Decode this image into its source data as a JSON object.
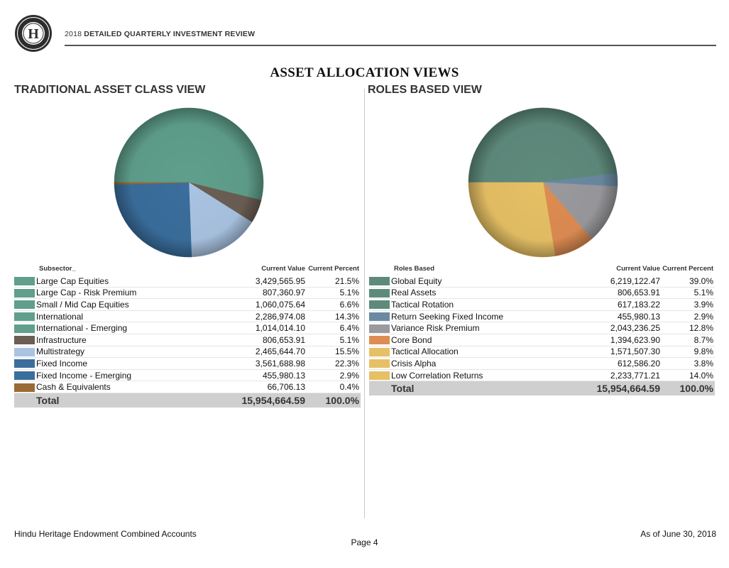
{
  "header": {
    "logo_letter": "H",
    "report_year": "2018",
    "report_name": "DETAILED QUARTERLY INVESTMENT REVIEW"
  },
  "page_title": "ASSET ALLOCATION VIEWS",
  "footer": {
    "account": "Hindu Heritage Endowment Combined Accounts",
    "page": "Page 4",
    "as_of": "As of June 30, 2018"
  },
  "chart_data": [
    {
      "type": "pie",
      "title": "TRADITIONAL ASSET CLASS VIEW",
      "label_header": "Subsector_",
      "value_header": "Current Value",
      "percent_header": "Current Percent",
      "rows": [
        {
          "label": "Large Cap Equities",
          "value": "3,429,565.95",
          "percent": "21.5%",
          "pct": 21.5,
          "color": "#5f9f8b"
        },
        {
          "label": "Large Cap - Risk Premium",
          "value": "807,360.97",
          "percent": "5.1%",
          "pct": 5.1,
          "color": "#5f9f8b"
        },
        {
          "label": "Small / Mid Cap Equities",
          "value": "1,060,075.64",
          "percent": "6.6%",
          "pct": 6.6,
          "color": "#5f9f8b"
        },
        {
          "label": "International",
          "value": "2,286,974.08",
          "percent": "14.3%",
          "pct": 14.3,
          "color": "#5f9f8b"
        },
        {
          "label": "International - Emerging",
          "value": "1,014,014.10",
          "percent": "6.4%",
          "pct": 6.4,
          "color": "#5f9f8b"
        },
        {
          "label": "Infrastructure",
          "value": "806,653.91",
          "percent": "5.1%",
          "pct": 5.1,
          "color": "#6b5e54"
        },
        {
          "label": "Multistrategy",
          "value": "2,465,644.70",
          "percent": "15.5%",
          "pct": 15.5,
          "color": "#a9c3e2"
        },
        {
          "label": "Fixed Income",
          "value": "3,561,688.98",
          "percent": "22.3%",
          "pct": 22.3,
          "color": "#3a6e9c"
        },
        {
          "label": "Fixed Income - Emerging",
          "value": "455,980.13",
          "percent": "2.9%",
          "pct": 2.9,
          "color": "#3a6e9c"
        },
        {
          "label": "Cash & Equivalents",
          "value": "66,706.13",
          "percent": "0.4%",
          "pct": 0.4,
          "color": "#9a6a34"
        }
      ],
      "total": {
        "label": "Total",
        "value": "15,954,664.59",
        "percent": "100.0%"
      }
    },
    {
      "type": "pie",
      "title": "ROLES BASED VIEW",
      "label_header": "Roles Based",
      "value_header": "Current Value",
      "percent_header": "Current Percent",
      "rows": [
        {
          "label": "Global Equity",
          "value": "6,219,122.47",
          "percent": "39.0%",
          "pct": 39.0,
          "color": "#5e8a7c"
        },
        {
          "label": "Real Assets",
          "value": "806,653.91",
          "percent": "5.1%",
          "pct": 5.1,
          "color": "#5e8a7c"
        },
        {
          "label": "Tactical Rotation",
          "value": "617,183.22",
          "percent": "3.9%",
          "pct": 3.9,
          "color": "#5e8a7c"
        },
        {
          "label": "Return Seeking Fixed Income",
          "value": "455,980.13",
          "percent": "2.9%",
          "pct": 2.9,
          "color": "#6a8aa2"
        },
        {
          "label": "Variance Risk Premium",
          "value": "2,043,236.25",
          "percent": "12.8%",
          "pct": 12.8,
          "color": "#9a9a9e"
        },
        {
          "label": "Core Bond",
          "value": "1,394,623.90",
          "percent": "8.7%",
          "pct": 8.7,
          "color": "#de8c52"
        },
        {
          "label": "Tactical Allocation",
          "value": "1,571,507.30",
          "percent": "9.8%",
          "pct": 9.8,
          "color": "#e6c065"
        },
        {
          "label": "Crisis Alpha",
          "value": "612,586.20",
          "percent": "3.8%",
          "pct": 3.8,
          "color": "#e6c065"
        },
        {
          "label": "Low Correlation Returns",
          "value": "2,233,771.21",
          "percent": "14.0%",
          "pct": 14.0,
          "color": "#e6c065"
        }
      ],
      "total": {
        "label": "Total",
        "value": "15,954,664.59",
        "percent": "100.0%"
      }
    }
  ]
}
